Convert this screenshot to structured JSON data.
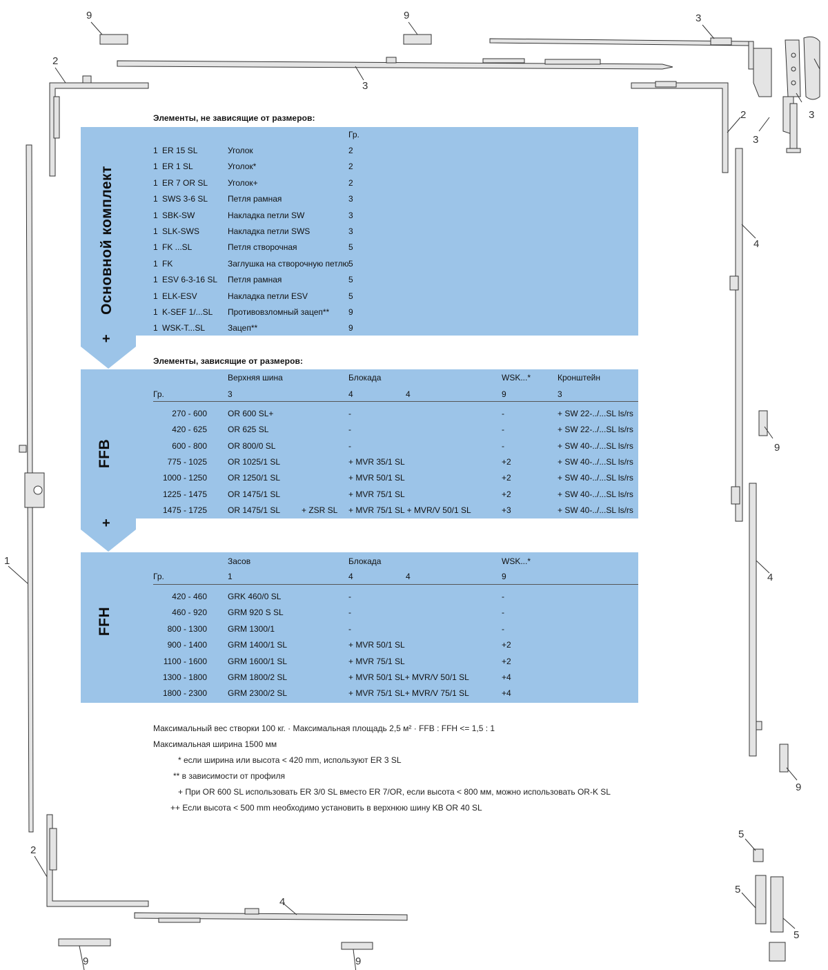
{
  "callouts": {
    "n1": "1",
    "n2": "2",
    "n3": "3",
    "n4": "4",
    "n5": "5",
    "n9": "9"
  },
  "section1": {
    "title": "Элементы, не зависящие от размеров:",
    "vertical_label": "Основной комплект",
    "col_header": "Гр.",
    "rows": [
      {
        "qty": "1",
        "code": "ER 15 SL",
        "name": "Уголок",
        "group": "2"
      },
      {
        "qty": "1",
        "code": "ER 1 SL",
        "name": "Уголок*",
        "group": "2"
      },
      {
        "qty": "1",
        "code": "ER 7 OR SL",
        "name": "Уголок+",
        "group": "2"
      },
      {
        "qty": "1",
        "code": "SWS 3-6 SL",
        "name": "Петля рамная",
        "group": "3"
      },
      {
        "qty": "1",
        "code": "SBK-SW",
        "name": "Накладка петли SW",
        "group": "3"
      },
      {
        "qty": "1",
        "code": "SLK-SWS",
        "name": "Накладка петли SWS",
        "group": "3"
      },
      {
        "qty": "1",
        "code": "FK ...SL",
        "name": "Петля створочная",
        "group": "5"
      },
      {
        "qty": "1",
        "code": "FK",
        "name": "Заглушка на створочную петлю",
        "group": "5"
      },
      {
        "qty": "1",
        "code": "ESV 6-3-16 SL",
        "name": "Петля рамная",
        "group": "5"
      },
      {
        "qty": "1",
        "code": "ELK-ESV",
        "name": "Накладка петли ESV",
        "group": "5"
      },
      {
        "qty": "1",
        "code": "K-SEF 1/...SL",
        "name": "Противовзломный зацеп**",
        "group": "9"
      },
      {
        "qty": "1",
        "code": "WSK-T...SL",
        "name": "Зацеп**",
        "group": "9"
      }
    ]
  },
  "plus": "+",
  "section2": {
    "title": "Элементы, зависящие от размеров:",
    "vertical_label": "FFB",
    "headers": {
      "gr": "Гр.",
      "c1": "Верхняя шина",
      "c1n": "3",
      "c2": "Блокада",
      "c2n_a": "4",
      "c2n_b": "4",
      "c3": "WSK...*",
      "c3n": "9",
      "c4": "Кронштейн",
      "c4n": "3"
    },
    "rows": [
      {
        "range": "270 -  600",
        "rail": "OR 600 SL+",
        "extra": "",
        "block": "-",
        "wsk": "-",
        "bracket": "+ SW 22-../...SL ls/rs"
      },
      {
        "range": "420 -  625",
        "rail": "OR 625 SL",
        "extra": "",
        "block": "-",
        "wsk": "-",
        "bracket": "+ SW 22-../...SL ls/rs"
      },
      {
        "range": "600 -  800",
        "rail": "OR 800/0 SL",
        "extra": "",
        "block": "-",
        "wsk": "-",
        "bracket": "+ SW 40-../...SL ls/rs"
      },
      {
        "range": "775 - 1025",
        "rail": "OR 1025/1 SL",
        "extra": "",
        "block": "+ MVR 35/1 SL",
        "wsk": "+2",
        "bracket": "+ SW 40-../...SL ls/rs"
      },
      {
        "range": "1000 - 1250",
        "rail": "OR 1250/1 SL",
        "extra": "",
        "block": "+ MVR 50/1 SL",
        "wsk": "+2",
        "bracket": "+ SW 40-../...SL ls/rs"
      },
      {
        "range": "1225 - 1475",
        "rail": "OR 1475/1 SL",
        "extra": "",
        "block": "+ MVR 75/1 SL",
        "wsk": "+2",
        "bracket": "+ SW 40-../...SL ls/rs"
      },
      {
        "range": "1475 - 1725",
        "rail": "OR 1475/1 SL",
        "extra": "+ ZSR SL",
        "block": "+ MVR 75/1 SL + MVR/V 50/1 SL",
        "wsk": "+3",
        "bracket": "+ SW 40-../...SL ls/rs"
      }
    ]
  },
  "section3": {
    "vertical_label": "FFH",
    "headers": {
      "gr": "Гр.",
      "c1": "Засов",
      "c1n": "1",
      "c2": "Блокада",
      "c2n_a": "4",
      "c2n_b": "4",
      "c3": "WSK...*",
      "c3n": "9"
    },
    "rows": [
      {
        "range": "420 -  460",
        "bolt": "GRK 460/0 SL",
        "block": "-",
        "wsk": "-"
      },
      {
        "range": "460 -  920",
        "bolt": "GRM 920 S SL",
        "block": "-",
        "wsk": "-"
      },
      {
        "range": "800 - 1300",
        "bolt": "GRM 1300/1",
        "block": "-",
        "wsk": "-"
      },
      {
        "range": "900 - 1400",
        "bolt": "GRM 1400/1 SL",
        "block": "+ MVR 50/1 SL",
        "wsk": "+2"
      },
      {
        "range": "1100 - 1600",
        "bolt": "GRM 1600/1 SL",
        "block": "+ MVR 75/1 SL",
        "wsk": "+2"
      },
      {
        "range": "1300 - 1800",
        "bolt": "GRM 1800/2 SL",
        "block": "+ MVR 50/1 SL+ MVR/V 50/1 SL",
        "wsk": "+4"
      },
      {
        "range": "1800 - 2300",
        "bolt": "GRM 2300/2 SL",
        "block": "+ MVR 75/1 SL+ MVR/V 75/1 SL",
        "wsk": "+4"
      }
    ]
  },
  "notes": [
    "Максимальный вес створки 100 кг. ·  Максимальная площадь 2,5 м² · FFB : FFH <= 1,5 : 1",
    "Максимальная ширина 1500 мм",
    "* если ширина или высота < 420 mm, используют ER 3 SL",
    "** в зависимости от профиля",
    "+ При OR 600 SL использовать ER 3/0 SL вместо ER 7/OR, если высота < 800 мм, можно использовать OR-K SL",
    "++ Если высота < 500 mm необходимо установить в верхнюю шину KB OR 40 SL"
  ]
}
